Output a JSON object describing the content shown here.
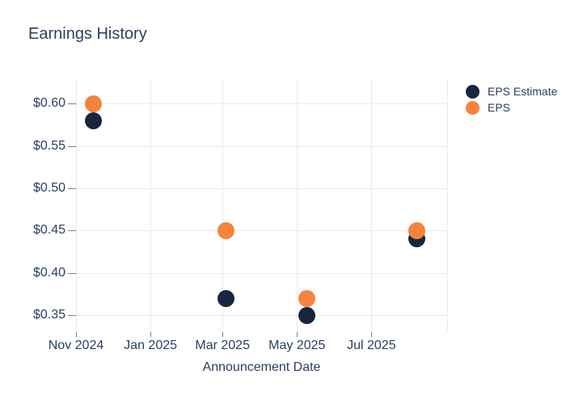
{
  "title": "Earnings History",
  "colors": {
    "background": "#ffffff",
    "text": "#2a3f5f",
    "gridline": "#e9ebf4",
    "tick": "#73809a",
    "eps_estimate": "#16263f",
    "eps": "#f6833c"
  },
  "chart_data": {
    "type": "scatter",
    "title": "Earnings History",
    "xlabel": "Announcement Date",
    "ylabel": "",
    "x_dates": [
      "2024-11-15",
      "2025-03-04",
      "2025-05-09",
      "2025-08-07"
    ],
    "series": [
      {
        "name": "EPS Estimate",
        "color": "#16263f",
        "values": [
          0.58,
          0.37,
          0.35,
          0.44
        ]
      },
      {
        "name": "EPS",
        "color": "#f6833c",
        "values": [
          0.6,
          0.45,
          0.37,
          0.45
        ]
      }
    ],
    "xlim": [
      "2024-11-01",
      "2025-09-01"
    ],
    "ylim": [
      0.33,
      0.629
    ],
    "xticks": [
      {
        "date": "2024-11-01",
        "label": "Nov 2024"
      },
      {
        "date": "2025-01-01",
        "label": "Jan 2025"
      },
      {
        "date": "2025-03-01",
        "label": "Mar 2025"
      },
      {
        "date": "2025-05-01",
        "label": "May 2025"
      },
      {
        "date": "2025-07-01",
        "label": "Jul 2025"
      },
      {
        "date": "2025-09-01",
        "label": ""
      }
    ],
    "yticks": [
      {
        "value": 0.35,
        "label": "$0.35"
      },
      {
        "value": 0.4,
        "label": "$0.40"
      },
      {
        "value": 0.45,
        "label": "$0.45"
      },
      {
        "value": 0.5,
        "label": "$0.50"
      },
      {
        "value": 0.55,
        "label": "$0.55"
      },
      {
        "value": 0.6,
        "label": "$0.60"
      }
    ],
    "grid": true,
    "legend_position": "right",
    "marker_size": 21
  }
}
